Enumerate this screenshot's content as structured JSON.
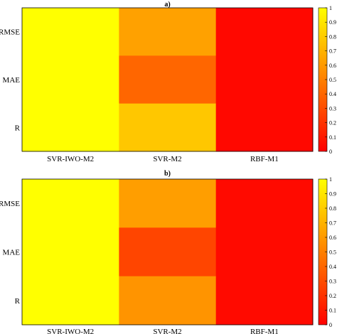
{
  "chart_data": [
    {
      "type": "heatmap",
      "title": "a)",
      "x_categories": [
        "SVR-IWO-M2",
        "SVR-M2",
        "RBF-M1"
      ],
      "y_categories": [
        "RMSE",
        "MAE",
        "R"
      ],
      "values": [
        [
          1.0,
          0.63,
          0.03
        ],
        [
          1.0,
          0.4,
          0.03
        ],
        [
          1.0,
          0.78,
          0.03
        ]
      ],
      "colorbar": {
        "min": 0,
        "max": 1,
        "ticks": [
          "0",
          "0.1",
          "0.2",
          "0.3",
          "0.4",
          "0.5",
          "0.6",
          "0.7",
          "0.8",
          "0.9",
          "1"
        ]
      },
      "colormap": [
        "#ff0000",
        "#ff8000",
        "#ffff00"
      ]
    },
    {
      "type": "heatmap",
      "title": "b)",
      "x_categories": [
        "SVR-IWO-M2",
        "SVR-M2",
        "RBF-M1"
      ],
      "y_categories": [
        "RMSE",
        "MAE",
        "R"
      ],
      "values": [
        [
          1.0,
          0.62,
          0.04
        ],
        [
          1.0,
          0.27,
          0.04
        ],
        [
          1.0,
          0.58,
          0.04
        ]
      ],
      "colorbar": {
        "min": 0,
        "max": 1,
        "ticks": [
          "0",
          "0.1",
          "0.2",
          "0.3",
          "0.4",
          "0.5",
          "0.6",
          "0.7",
          "0.8",
          "0.9",
          "1"
        ]
      },
      "colormap": [
        "#ff0000",
        "#ff8000",
        "#ffff00"
      ]
    }
  ]
}
